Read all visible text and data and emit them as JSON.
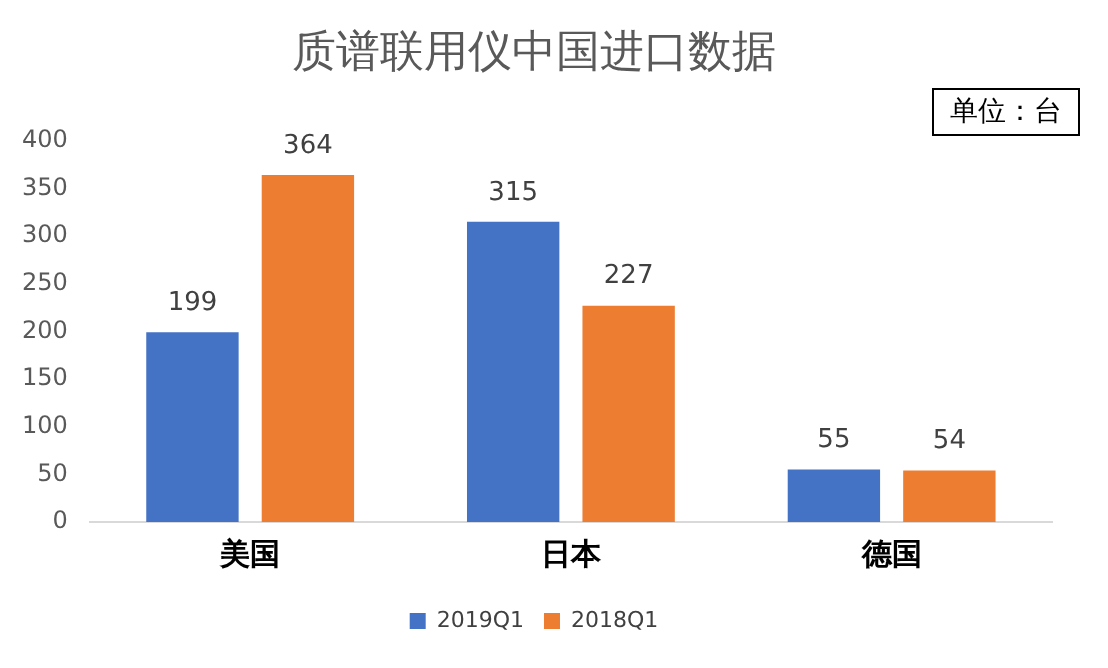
{
  "chart_data": {
    "type": "bar",
    "title": "质谱联用仪中国进口数据",
    "annotations": [
      "单位：台"
    ],
    "categories": [
      "美国",
      "日本",
      "德国"
    ],
    "series": [
      {
        "name": "2019Q1",
        "color": "#4472c4",
        "values": [
          199,
          315,
          55
        ]
      },
      {
        "name": "2018Q1",
        "color": "#ed7d31",
        "values": [
          364,
          227,
          54
        ]
      }
    ],
    "ylim": [
      0,
      400
    ],
    "yticks": [
      0,
      50,
      100,
      150,
      200,
      250,
      300,
      350,
      400
    ],
    "grid": false,
    "legend": "bottom",
    "data_labels": true
  }
}
